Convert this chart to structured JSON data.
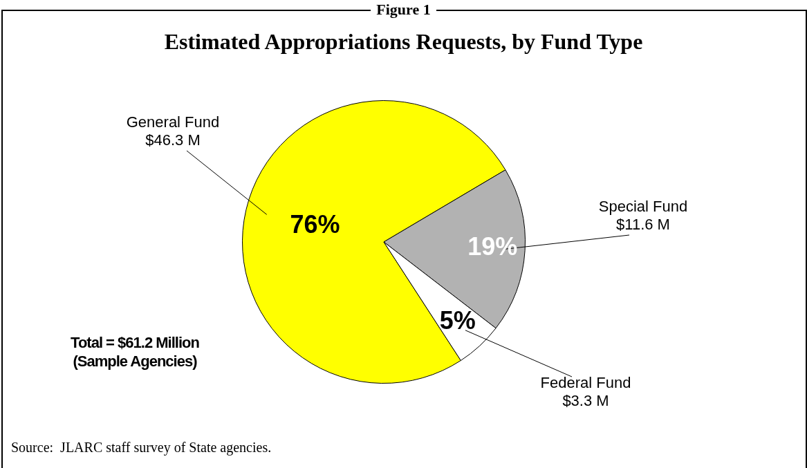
{
  "chart_data": {
    "type": "pie",
    "title": "Estimated Appropriations Requests, by Fund Type",
    "categories": [
      "General Fund",
      "Special Fund",
      "Federal Fund"
    ],
    "values": [
      46.3,
      11.6,
      3.3
    ],
    "value_labels": [
      "$46.3 M",
      "$11.6 M",
      "$3.3 M"
    ],
    "colors": [
      "#ffff00",
      "#b2b2b2",
      "#ffffff"
    ],
    "legend": false,
    "annotations": [
      "Figure 1",
      {
        "text": "76%",
        "x": "General Fund"
      },
      {
        "text": "19%",
        "x": "Special Fund"
      },
      {
        "text": "5%",
        "x": "Federal Fund"
      },
      "Total = $61.2 Million\n(Sample Agencies)",
      "Source:  JLARC staff survey of State agencies."
    ]
  }
}
